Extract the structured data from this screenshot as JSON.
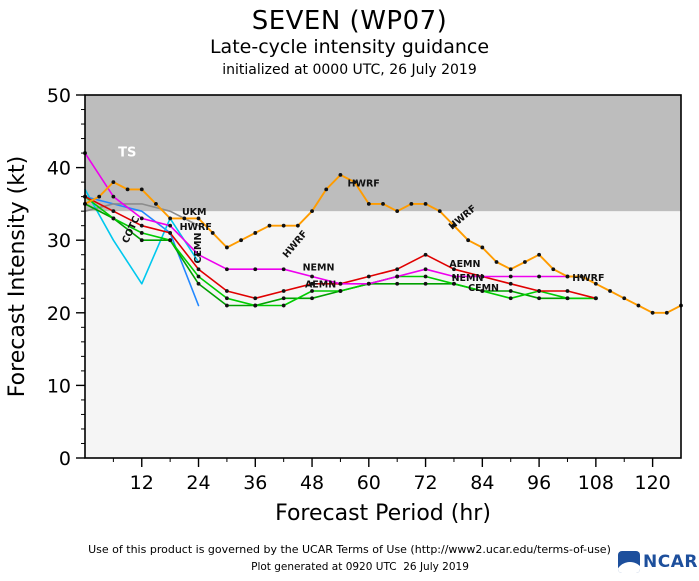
{
  "title": "SEVEN (WP07)",
  "subtitle": "Late-cycle intensity guidance",
  "init_line": "initialized at 0000 UTC, 26 July 2019",
  "footer": {
    "terms": "Use of this product is governed by the UCAR Terms of Use (http://www2.ucar.edu/terms-of-use)",
    "generated": "Plot generated at 0920 UTC  26 July 2019",
    "logo_text": "NCAR"
  },
  "colors": {
    "ts_shade": "#bdbdbd",
    "plot_bg": "#f5f5f5",
    "frame": "#000000",
    "logo_blue": "#1d4f9c"
  },
  "chart_data": {
    "type": "line",
    "title": "SEVEN (WP07)",
    "subtitle": "Late-cycle intensity guidance",
    "init_label": "initialized at 0000 UTC, 26 July 2019",
    "xlabel": "Forecast Period (hr)",
    "ylabel": "Forecast Intensity (kt)",
    "xlim": [
      0,
      126
    ],
    "ylim": [
      0,
      50
    ],
    "xticks": [
      12,
      24,
      36,
      48,
      60,
      72,
      84,
      96,
      108,
      120
    ],
    "xminor_step": 6,
    "yticks": [
      0,
      10,
      20,
      30,
      40,
      50
    ],
    "yminor_step": 2,
    "grid": false,
    "ts_threshold": 34,
    "ts_label": "TS",
    "series": [
      {
        "name": "BLUE",
        "color": "#2288ff",
        "dots": false,
        "points": [
          [
            0,
            36
          ],
          [
            6,
            35
          ],
          [
            12,
            34
          ],
          [
            18,
            31
          ],
          [
            24,
            21
          ]
        ]
      },
      {
        "name": "UKM",
        "color": "#8c8c8c",
        "dots": false,
        "points": [
          [
            0,
            34
          ],
          [
            6,
            35
          ],
          [
            12,
            35
          ],
          [
            18,
            34
          ],
          [
            21,
            33
          ],
          [
            24,
            32
          ]
        ]
      },
      {
        "name": "COTC",
        "color": "#00c8ee",
        "dots": false,
        "points": [
          [
            0,
            37
          ],
          [
            6,
            30
          ],
          [
            12,
            24
          ],
          [
            18,
            33
          ],
          [
            24,
            27
          ]
        ]
      },
      {
        "name": "NEMN",
        "color": "#00a000",
        "dots": true,
        "points": [
          [
            0,
            35
          ],
          [
            6,
            33
          ],
          [
            12,
            30
          ],
          [
            18,
            30
          ],
          [
            24,
            24
          ],
          [
            30,
            21
          ],
          [
            36,
            21
          ],
          [
            42,
            22
          ],
          [
            48,
            22
          ],
          [
            54,
            23
          ],
          [
            60,
            24
          ],
          [
            66,
            24
          ],
          [
            72,
            24
          ],
          [
            78,
            24
          ],
          [
            84,
            23
          ],
          [
            90,
            23
          ],
          [
            96,
            22
          ],
          [
            102,
            22
          ],
          [
            108,
            22
          ]
        ]
      },
      {
        "name": "CEMN",
        "color": "#00cc00",
        "dots": true,
        "points": [
          [
            0,
            36
          ],
          [
            6,
            33
          ],
          [
            12,
            31
          ],
          [
            18,
            30
          ],
          [
            24,
            25
          ],
          [
            30,
            22
          ],
          [
            36,
            21
          ],
          [
            42,
            21
          ],
          [
            48,
            23
          ],
          [
            54,
            23
          ],
          [
            60,
            24
          ],
          [
            66,
            25
          ],
          [
            72,
            25
          ],
          [
            78,
            24
          ],
          [
            84,
            23
          ],
          [
            90,
            22
          ],
          [
            96,
            23
          ],
          [
            102,
            22
          ],
          [
            108,
            22
          ]
        ]
      },
      {
        "name": "AEMN",
        "color": "#e00000",
        "dots": true,
        "points": [
          [
            0,
            36
          ],
          [
            6,
            34
          ],
          [
            12,
            32
          ],
          [
            18,
            31
          ],
          [
            24,
            26
          ],
          [
            30,
            23
          ],
          [
            36,
            22
          ],
          [
            42,
            23
          ],
          [
            48,
            24
          ],
          [
            54,
            24
          ],
          [
            60,
            25
          ],
          [
            66,
            26
          ],
          [
            72,
            28
          ],
          [
            78,
            26
          ],
          [
            84,
            25
          ],
          [
            90,
            24
          ],
          [
            96,
            23
          ],
          [
            102,
            23
          ],
          [
            108,
            22
          ]
        ]
      },
      {
        "name": "MAGENTA",
        "color": "#ee00ee",
        "dots": true,
        "points": [
          [
            0,
            42
          ],
          [
            6,
            36
          ],
          [
            12,
            33
          ],
          [
            18,
            32
          ],
          [
            24,
            28
          ],
          [
            30,
            26
          ],
          [
            36,
            26
          ],
          [
            42,
            26
          ],
          [
            48,
            25
          ],
          [
            54,
            24
          ],
          [
            60,
            24
          ],
          [
            66,
            25
          ],
          [
            72,
            26
          ],
          [
            78,
            25
          ],
          [
            84,
            25
          ],
          [
            90,
            25
          ],
          [
            96,
            25
          ],
          [
            102,
            25
          ]
        ]
      },
      {
        "name": "HWRF",
        "color": "#ff9c00",
        "dots": true,
        "points": [
          [
            0,
            35
          ],
          [
            3,
            36
          ],
          [
            6,
            38
          ],
          [
            9,
            37
          ],
          [
            12,
            37
          ],
          [
            15,
            35
          ],
          [
            18,
            33
          ],
          [
            21,
            33
          ],
          [
            24,
            33
          ],
          [
            27,
            31
          ],
          [
            30,
            29
          ],
          [
            33,
            30
          ],
          [
            36,
            31
          ],
          [
            39,
            32
          ],
          [
            42,
            32
          ],
          [
            45,
            32
          ],
          [
            48,
            34
          ],
          [
            51,
            37
          ],
          [
            54,
            39
          ],
          [
            57,
            38
          ],
          [
            60,
            35
          ],
          [
            63,
            35
          ],
          [
            66,
            34
          ],
          [
            69,
            35
          ],
          [
            72,
            35
          ],
          [
            75,
            34
          ],
          [
            78,
            32
          ],
          [
            81,
            30
          ],
          [
            84,
            29
          ],
          [
            87,
            27
          ],
          [
            90,
            26
          ],
          [
            93,
            27
          ],
          [
            96,
            28
          ],
          [
            99,
            26
          ],
          [
            102,
            25
          ],
          [
            105,
            25
          ],
          [
            108,
            24
          ],
          [
            111,
            23
          ],
          [
            114,
            22
          ],
          [
            117,
            21
          ],
          [
            120,
            20
          ],
          [
            123,
            20
          ],
          [
            126,
            21
          ]
        ]
      }
    ],
    "annotations": [
      {
        "label": "TS",
        "x": 7,
        "y": 41.5,
        "rot": 0,
        "color": "#ffffff",
        "size": 13
      },
      {
        "label": "COTC",
        "x": 9,
        "y": 29.5,
        "rot": -65,
        "color": "#111111",
        "size": 9.5
      },
      {
        "label": "UKM",
        "x": 20.5,
        "y": 33.5,
        "rot": 0,
        "color": "#111111",
        "size": 9.5
      },
      {
        "label": "HWRF",
        "x": 20,
        "y": 31.4,
        "rot": 0,
        "color": "#111111",
        "size": 9.5
      },
      {
        "label": "CEMN",
        "x": 24.5,
        "y": 26.8,
        "rot": -90,
        "color": "#111111",
        "size": 9.5
      },
      {
        "label": "HWRF",
        "x": 42.7,
        "y": 27.5,
        "rot": -50,
        "color": "#111111",
        "size": 9.5
      },
      {
        "label": "NEMN",
        "x": 46,
        "y": 25.8,
        "rot": 0,
        "color": "#111111",
        "size": 9.5
      },
      {
        "label": "AEMN",
        "x": 46.5,
        "y": 23.5,
        "rot": 0,
        "color": "#111111",
        "size": 9.5
      },
      {
        "label": "HWRF",
        "x": 55.5,
        "y": 37.4,
        "rot": 0,
        "color": "#111111",
        "size": 9.5
      },
      {
        "label": "HWRF",
        "x": 77.6,
        "y": 31.4,
        "rot": -40,
        "color": "#111111",
        "size": 9.5
      },
      {
        "label": "AEMN",
        "x": 77,
        "y": 26.3,
        "rot": 0,
        "color": "#111111",
        "size": 9.5
      },
      {
        "label": "NEMN",
        "x": 77.5,
        "y": 24.4,
        "rot": 0,
        "color": "#111111",
        "size": 9.5
      },
      {
        "label": "CEMN",
        "x": 81,
        "y": 23.0,
        "rot": 0,
        "color": "#111111",
        "size": 9.5
      },
      {
        "label": "HWRF",
        "x": 103,
        "y": 24.4,
        "rot": 0,
        "color": "#111111",
        "size": 9.5
      }
    ]
  }
}
